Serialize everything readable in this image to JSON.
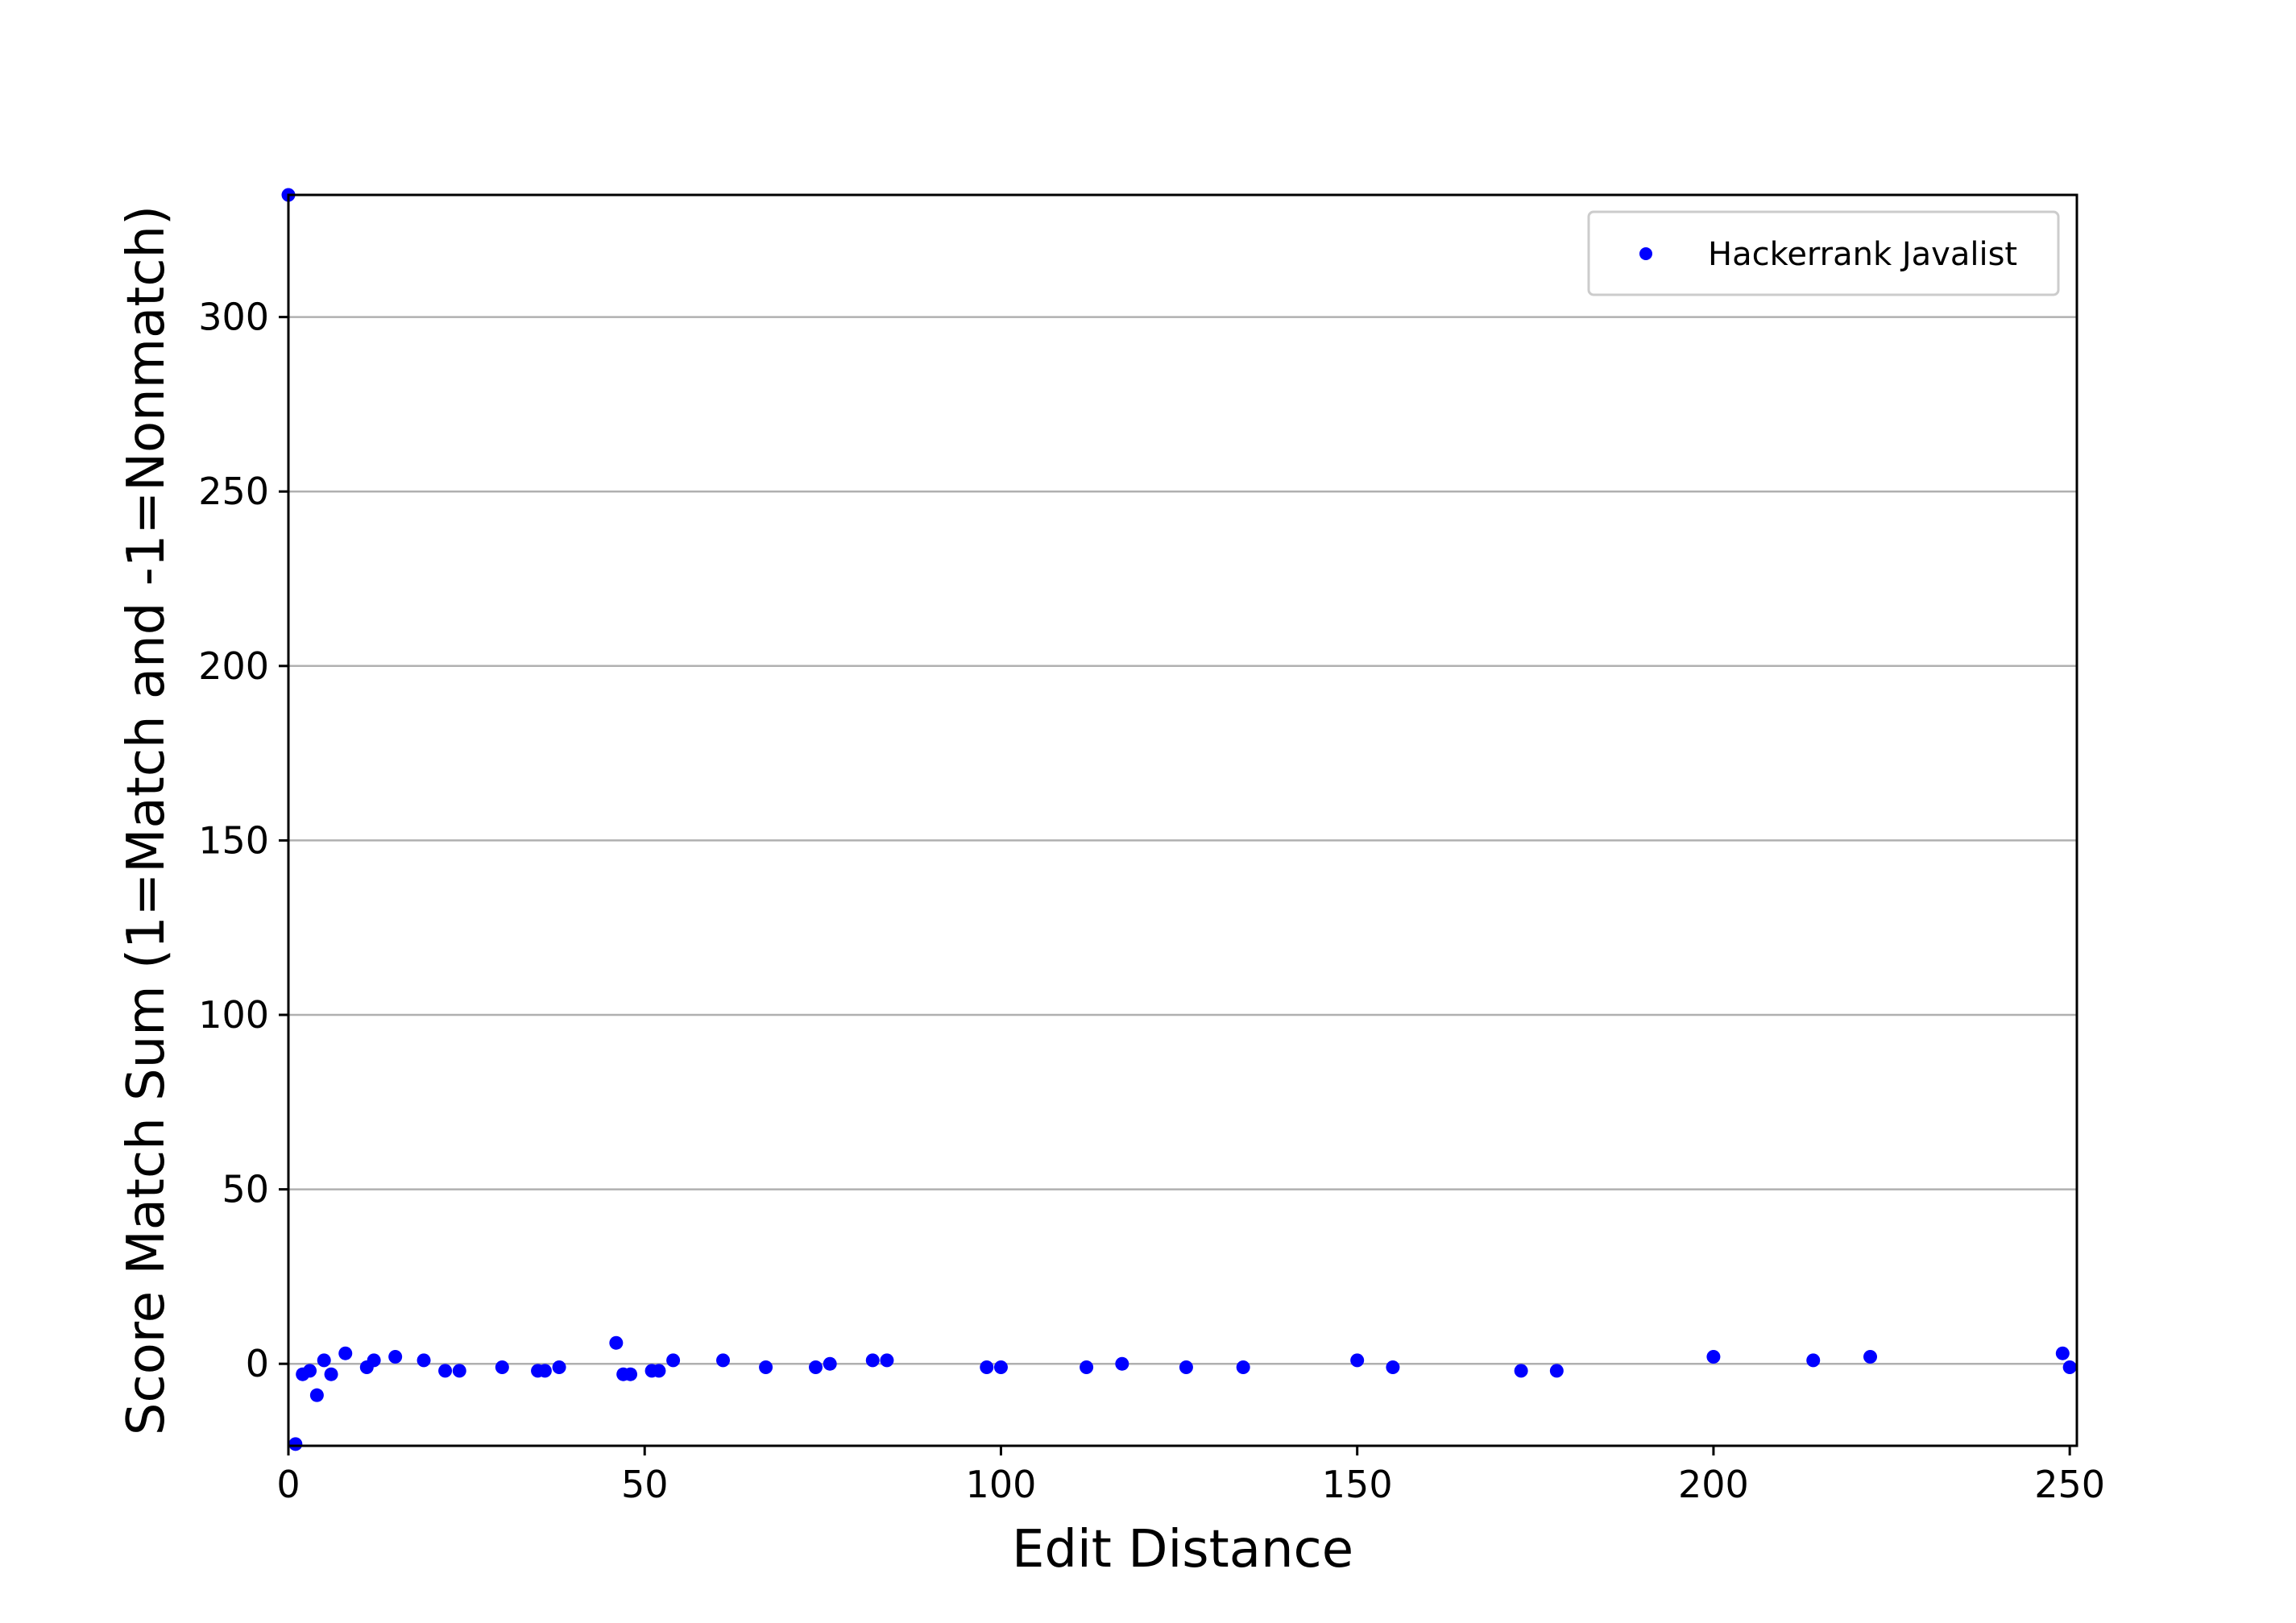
{
  "chart_data": {
    "type": "scatter",
    "title": "",
    "xlabel": "Edit Distance",
    "ylabel": "Score Match Sum (1=Match and -1=Nonmatch)",
    "xlim": [
      0,
      251
    ],
    "ylim": [
      -23.5,
      335
    ],
    "xticks": [
      "0",
      "50",
      "100",
      "150",
      "200",
      "250"
    ],
    "yticks": [
      "0",
      "50",
      "100",
      "150",
      "200",
      "250",
      "300"
    ],
    "grid": "horizontal",
    "legend_position": "top-right",
    "colors": {
      "series": "#0000ff",
      "grid": "#b0b0b0",
      "axes": "#000000",
      "legend_border": "#cccccc"
    },
    "series": [
      {
        "name": "Hackerrank Javalist",
        "marker": "circle",
        "points": [
          [
            0,
            335
          ],
          [
            1,
            -23
          ],
          [
            2,
            -3
          ],
          [
            3,
            -2
          ],
          [
            4,
            -9
          ],
          [
            5,
            1
          ],
          [
            6,
            -3
          ],
          [
            8,
            3
          ],
          [
            11,
            -1
          ],
          [
            12,
            1
          ],
          [
            15,
            2
          ],
          [
            19,
            1
          ],
          [
            22,
            -2
          ],
          [
            24,
            -2
          ],
          [
            30,
            -1
          ],
          [
            35,
            -2
          ],
          [
            36,
            -2
          ],
          [
            38,
            -1
          ],
          [
            46,
            6
          ],
          [
            47,
            -3
          ],
          [
            48,
            -3
          ],
          [
            51,
            -2
          ],
          [
            52,
            -2
          ],
          [
            54,
            1
          ],
          [
            61,
            1
          ],
          [
            67,
            -1
          ],
          [
            74,
            -1
          ],
          [
            76,
            0
          ],
          [
            82,
            1
          ],
          [
            84,
            1
          ],
          [
            98,
            -1
          ],
          [
            100,
            -1
          ],
          [
            112,
            -1
          ],
          [
            117,
            0
          ],
          [
            126,
            -1
          ],
          [
            134,
            -1
          ],
          [
            150,
            1
          ],
          [
            155,
            -1
          ],
          [
            173,
            -2
          ],
          [
            178,
            -2
          ],
          [
            200,
            2
          ],
          [
            214,
            1
          ],
          [
            222,
            2
          ],
          [
            249,
            3
          ],
          [
            250,
            -1
          ]
        ]
      }
    ]
  }
}
